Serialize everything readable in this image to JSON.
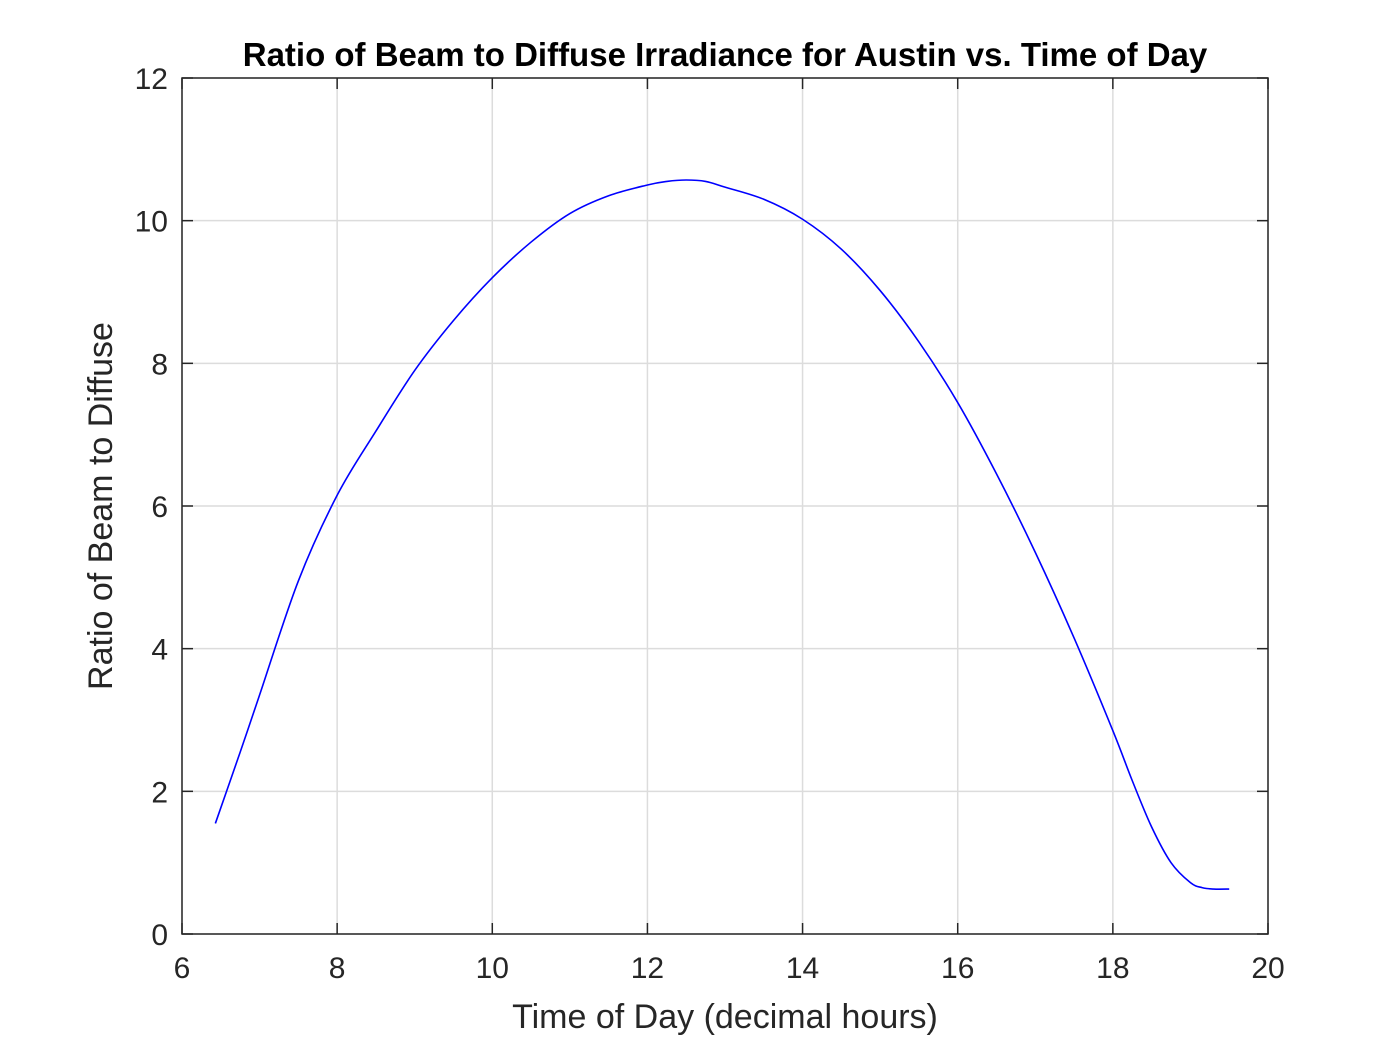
{
  "chart_data": {
    "type": "line",
    "title": "Ratio of Beam to Diffuse Irradiance for Austin vs. Time of Day",
    "xlabel": "Time of Day (decimal hours)",
    "ylabel": "Ratio of Beam to Diffuse",
    "xlim": [
      6,
      20
    ],
    "ylim": [
      0,
      12
    ],
    "xticks": [
      6,
      8,
      10,
      12,
      14,
      16,
      18,
      20
    ],
    "yticks": [
      0,
      2,
      4,
      6,
      8,
      10,
      12
    ],
    "grid": true,
    "line_color": "#0000ff",
    "series": [
      {
        "x": [
          6.43,
          6.75,
          7.0,
          7.5,
          8.0,
          8.5,
          9.0,
          9.5,
          10.0,
          10.5,
          11.0,
          11.5,
          12.0,
          12.25,
          12.5,
          12.75,
          13.0,
          13.5,
          14.0,
          14.5,
          15.0,
          15.5,
          16.0,
          16.5,
          17.0,
          17.5,
          18.0,
          18.25,
          18.5,
          18.75,
          19.0,
          19.15,
          19.3,
          19.5
        ],
        "y": [
          1.55,
          2.55,
          3.35,
          4.95,
          6.15,
          7.05,
          7.9,
          8.6,
          9.2,
          9.7,
          10.1,
          10.35,
          10.5,
          10.55,
          10.57,
          10.55,
          10.47,
          10.3,
          10.02,
          9.6,
          9.02,
          8.3,
          7.45,
          6.45,
          5.35,
          4.15,
          2.85,
          2.15,
          1.5,
          1.0,
          0.72,
          0.65,
          0.63,
          0.63
        ]
      }
    ]
  }
}
